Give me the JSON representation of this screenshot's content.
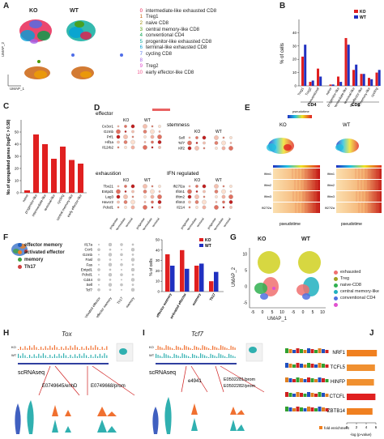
{
  "panels": {
    "A": {
      "label": "A",
      "ko_title": "KO",
      "wt_title": "WT",
      "xlabel": "UMAP_1",
      "ylabel": "UMAP_2",
      "clusters": [
        {
          "num": "0",
          "name": "intermediate-like exhausted CD8",
          "color": "#e6194b"
        },
        {
          "num": "1",
          "name": "Treg1",
          "color": "#c85a00"
        },
        {
          "num": "2",
          "name": "naive CD8",
          "color": "#9a8a00"
        },
        {
          "num": "3",
          "name": "central memory-like CD8",
          "color": "#4c9a00"
        },
        {
          "num": "4",
          "name": "conventional CD4",
          "color": "#00a048"
        },
        {
          "num": "5",
          "name": "progenitor-like exhausted CD8",
          "color": "#00a89a"
        },
        {
          "num": "6",
          "name": "terminal-like exhausted CD8",
          "color": "#00a0d8"
        },
        {
          "num": "7",
          "name": "cycling CD8",
          "color": "#4f6ee8"
        },
        {
          "num": "8",
          "name": "",
          "color": "#a45ee8"
        },
        {
          "num": "9",
          "name": "Treg2",
          "color": "#e040c8"
        },
        {
          "num": "10",
          "name": "early effector-like CD8",
          "color": "#f0508a"
        }
      ]
    },
    "B": {
      "label": "B",
      "ylabel": "% of cells",
      "group_labels": [
        "CD4",
        "CD8"
      ]
    },
    "C": {
      "label": "C",
      "ylabel": "No.of upregulated genes (logFC > 0.58)"
    },
    "D": {
      "label": "D",
      "sections": {
        "effector": {
          "title": "effector",
          "genes": [
            "Cx3cr1",
            "Gzmb",
            "Prf1",
            "Hif1a",
            "Il12rb2"
          ]
        },
        "exhaustion": {
          "title": "exhaustion",
          "genes": [
            "Tbx21",
            "Entpd1",
            "Lag3",
            "Havcr2",
            "Pdcd1"
          ]
        },
        "stemness": {
          "title": "stemness",
          "genes": [
            "Sell",
            "Tcf7",
            "Klf2"
          ]
        },
        "ifn": {
          "title": "IFN regulated",
          "genes": [
            "Ifi27l2a",
            "Ifitm1",
            "Ifitm2",
            "Ifitm3",
            "Il214"
          ]
        }
      },
      "ko": "KO",
      "wt": "WT",
      "xcats": [
        "progenitor",
        "intermediate",
        "terminal"
      ]
    },
    "E": {
      "label": "E",
      "ko": "KO",
      "wt": "WT",
      "scale_title": "pseudotime",
      "xlabel": "pseudotime",
      "genes": [
        "Ifitm1",
        "Ifitm2",
        "Ifitm3",
        "Ifi27l2a"
      ]
    },
    "F": {
      "label": "F",
      "legend": [
        {
          "name": "effector memory",
          "color": "#2060c0"
        },
        {
          "name": "activated effector",
          "color": "#f08020"
        },
        {
          "name": "memory",
          "color": "#40a040"
        },
        {
          "name": "Th17",
          "color": "#d04040"
        }
      ],
      "genes": [
        "Il17a",
        "Ccr6",
        "Gzmb",
        "Fasl",
        "Fas",
        "Entpd1",
        "Pdcd1",
        "Cd44",
        "Sell",
        "Tcf7"
      ],
      "xcats": [
        "activated effector",
        "effector memory",
        "Th17",
        "memory"
      ],
      "ylabel": "% of cells"
    },
    "G": {
      "label": "G",
      "ko": "KO",
      "wt": "WT",
      "xlabel": "UMAP_1",
      "ylabel": "UMAP_2",
      "xticks": [
        "-5",
        "0",
        "5",
        "10",
        "-5",
        "0",
        "5",
        "10"
      ],
      "yticks": [
        "-5",
        "0",
        "5",
        "10"
      ],
      "legend": [
        {
          "name": "exhausted",
          "color": "#f07070"
        },
        {
          "name": "Treg",
          "color": "#a0a020"
        },
        {
          "name": "naive-CD8",
          "color": "#30b050"
        },
        {
          "name": "central memory-like",
          "color": "#20b0c0"
        },
        {
          "name": "conventional CD4",
          "color": "#5070e0"
        },
        {
          "name": "",
          "color": "#e050d0"
        }
      ]
    },
    "H": {
      "label": "H",
      "gene": "Tox",
      "scrna": "scRNAseq",
      "peak1": "E0749645/enhD",
      "peak2": "E0749668/prom",
      "ko": "KO",
      "wt": "WT"
    },
    "I": {
      "label": "I",
      "gene": "Tcf7",
      "scrna": "scRNAseq",
      "peak1": "e4941",
      "peak2a": "E0502281/prom",
      "peak2b": "E0502282/prom",
      "ko": "KO",
      "wt": "WT"
    },
    "J": {
      "label": "J",
      "motifs": [
        "NRF1",
        "TCFL5",
        "HINFP",
        "CTCFL",
        "ZBTB14"
      ],
      "xlabel1": "fold enrichment",
      "xlabel2": "-log (p-value)",
      "ticks": [
        "0",
        "2",
        "4",
        "6"
      ]
    }
  },
  "chart_data": [
    {
      "type": "bar",
      "title": "",
      "ylabel": "% of cells",
      "categories": [
        "Treg1",
        "Treg2",
        "conventional",
        "naive",
        "progenitor-like",
        "intermediate-like",
        "terminal-like",
        "early effector-like",
        "central memory-like",
        "cycling"
      ],
      "series": [
        {
          "name": "KO",
          "values": [
            22,
            3,
            13,
            1,
            7,
            36,
            12,
            9,
            6,
            10
          ]
        },
        {
          "name": "WT",
          "values": [
            31,
            4,
            7,
            1,
            3,
            31,
            16,
            9,
            5,
            12
          ]
        }
      ],
      "ylim": [
        0,
        50
      ],
      "yticks": [
        0,
        10,
        20,
        30,
        40
      ]
    },
    {
      "type": "bar",
      "title": "",
      "ylabel": "No.of upregulated genes (logFC > 0.58)",
      "categories": [
        "naive",
        "progenitor-like",
        "intermediate-like",
        "terminal-like",
        "cycling",
        "central memory-like",
        "early effector-like"
      ],
      "values": [
        2,
        48,
        40,
        28,
        38,
        27,
        24
      ],
      "ylim": [
        0,
        60
      ],
      "yticks": [
        0,
        10,
        20,
        30,
        40,
        50
      ]
    },
    {
      "type": "bar",
      "title": "",
      "ylabel": "% of cells",
      "categories": [
        "effector memory",
        "activated effector",
        "memory",
        "Th17"
      ],
      "series": [
        {
          "name": "KO",
          "values": [
            36,
            40,
            25,
            10
          ]
        },
        {
          "name": "WT",
          "values": [
            25,
            22,
            27,
            19
          ]
        }
      ],
      "ylim": [
        0,
        50
      ],
      "yticks": [
        0,
        10,
        20,
        30,
        40,
        50
      ]
    },
    {
      "type": "bar",
      "title": "",
      "categories": [
        "NRF1",
        "TCFL5",
        "HINFP",
        "CTCFL",
        "ZBTB14"
      ],
      "values": [
        6.2,
        5.8,
        5.6,
        5.9,
        5.3
      ],
      "xlim": [
        0,
        6
      ],
      "xticks": [
        0,
        2,
        4,
        6
      ]
    }
  ]
}
